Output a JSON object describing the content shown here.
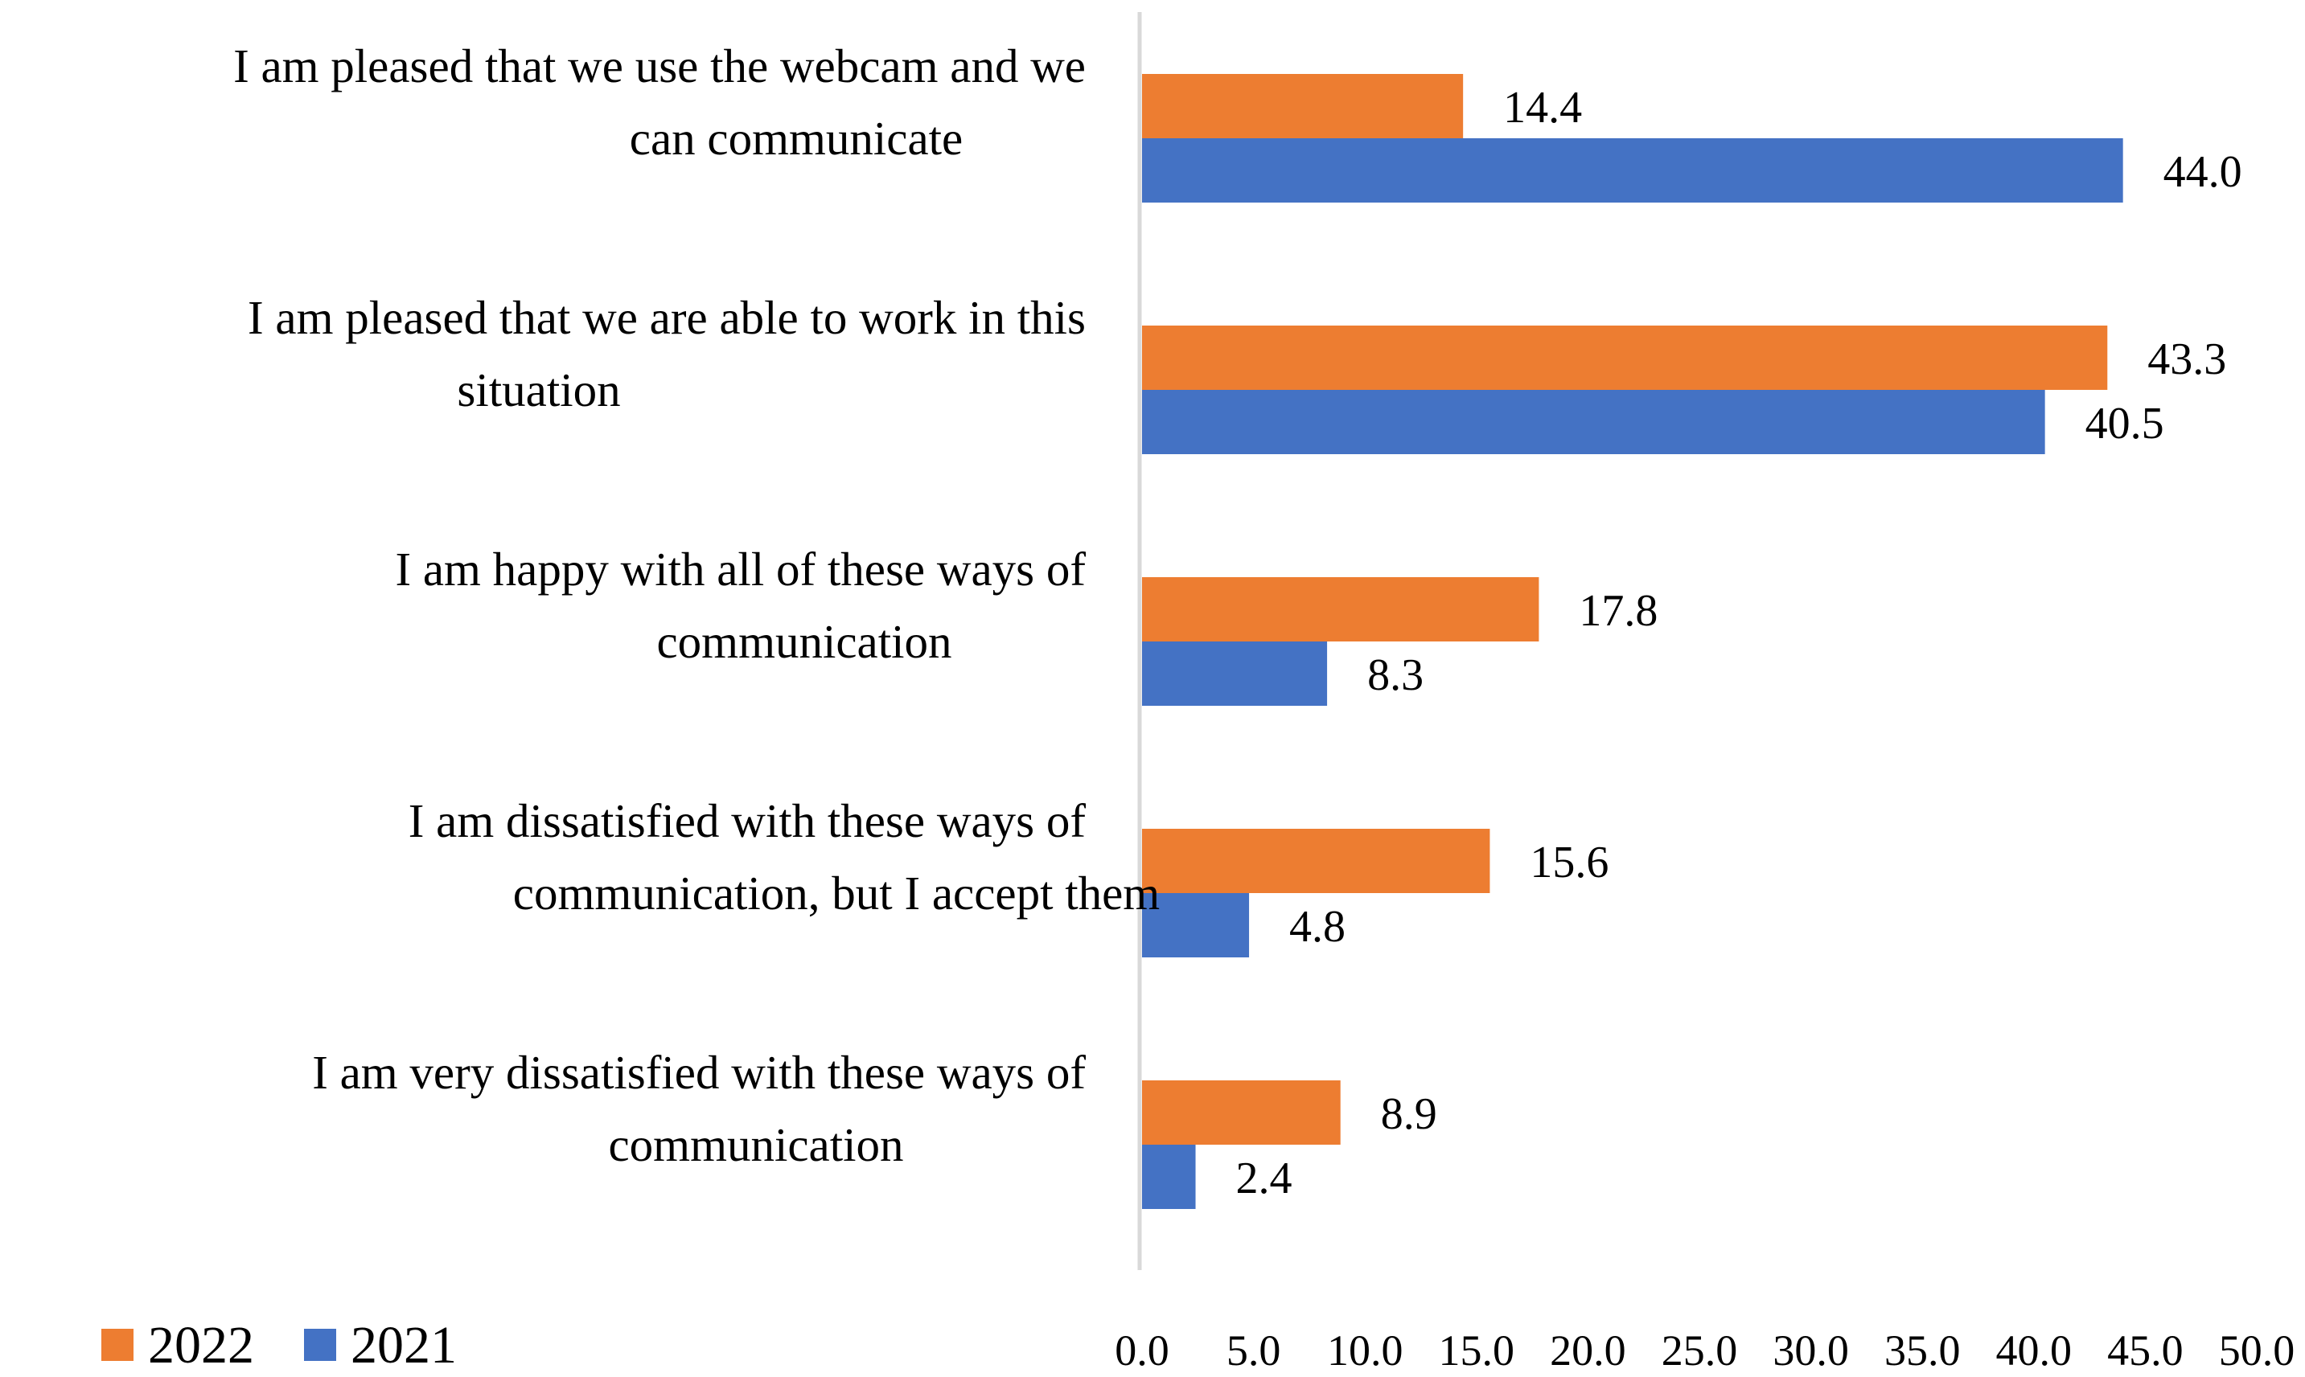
{
  "chart_data": {
    "type": "bar",
    "orientation": "horizontal",
    "title": "",
    "xlabel": "",
    "ylabel": "",
    "xlim": [
      0,
      50
    ],
    "x_ticks": [
      "0.0",
      "5.0",
      "10.0",
      "15.0",
      "20.0",
      "25.0",
      "30.0",
      "35.0",
      "40.0",
      "45.0",
      "50.0"
    ],
    "grid": false,
    "legend_position": "bottom-left",
    "categories": [
      [
        "I am pleased that we use the webcam and we",
        "can communicate"
      ],
      [
        "I am pleased that we are able to work in this",
        "situation"
      ],
      [
        "I am happy with all of these ways of",
        "communication"
      ],
      [
        "I am dissatisfied with these ways of",
        "communication, but I accept them"
      ],
      [
        "I am very dissatisfied with these ways of",
        "communication"
      ]
    ],
    "series": [
      {
        "name": "2022",
        "color": "#ED7D31",
        "values": [
          14.4,
          43.3,
          17.8,
          15.6,
          8.9
        ],
        "labels": [
          "14.4",
          "43.3",
          "17.8",
          "15.6",
          "8.9"
        ]
      },
      {
        "name": "2021",
        "color": "#4472C4",
        "values": [
          44.0,
          40.5,
          8.3,
          4.8,
          2.4
        ],
        "labels": [
          "44.0",
          "40.5",
          "8.3",
          "4.8",
          "2.4"
        ]
      }
    ],
    "axis_color": "#D9D9D9"
  }
}
